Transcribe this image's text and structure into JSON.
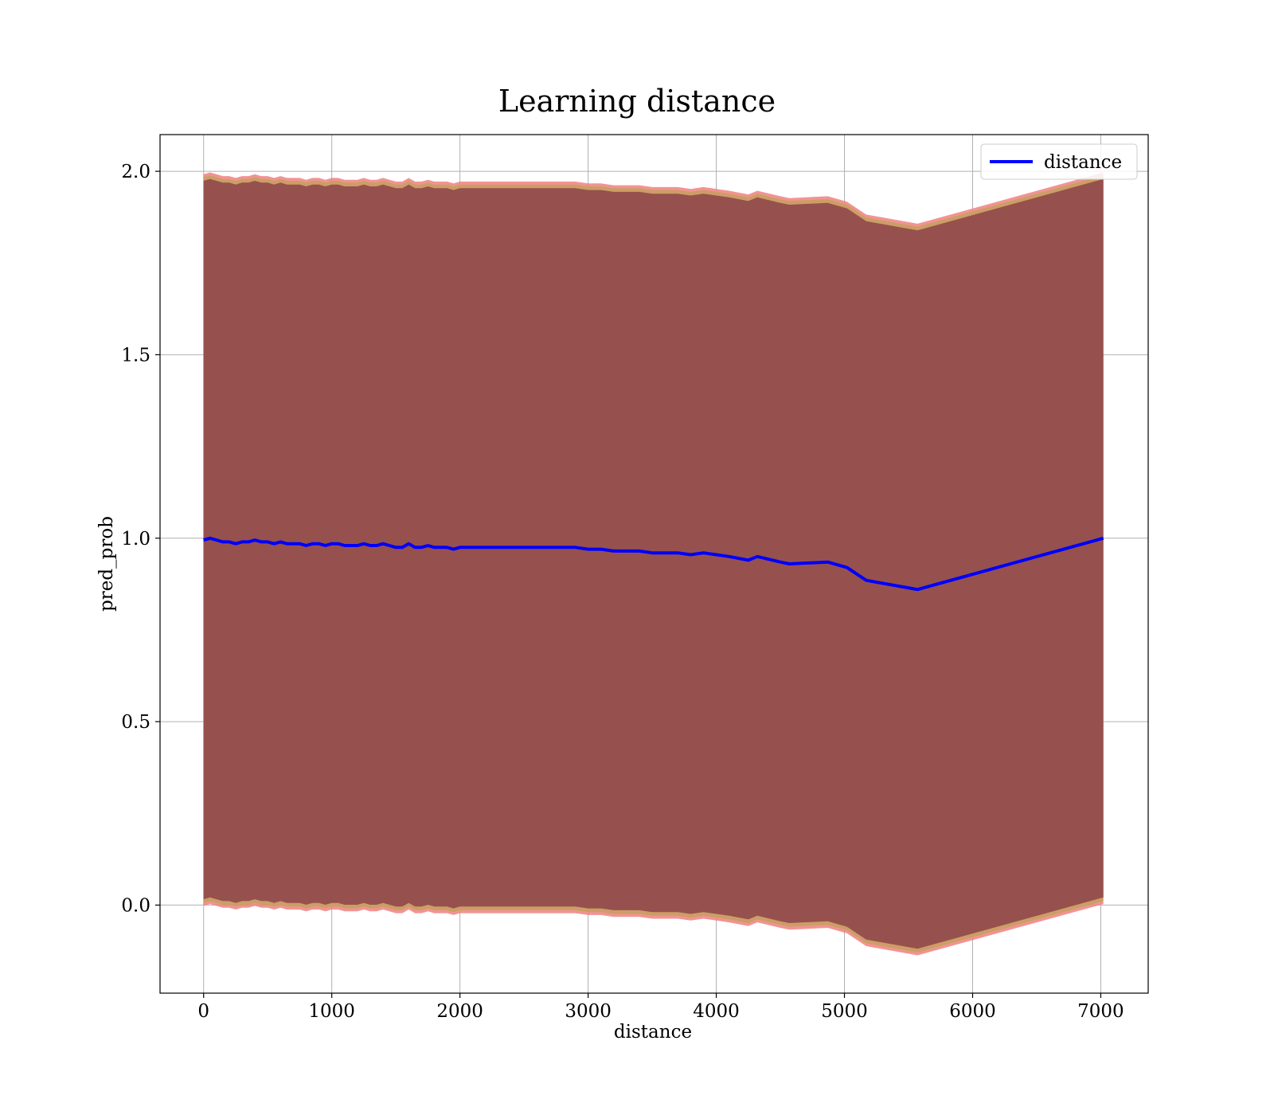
{
  "chart_data": {
    "type": "line",
    "title": "Learning distance",
    "xlabel": "distance",
    "ylabel": "pred_prob",
    "xlim": [
      -340,
      7370
    ],
    "ylim": [
      -0.24,
      2.1
    ],
    "xticks": [
      0,
      1000,
      2000,
      3000,
      4000,
      5000,
      6000,
      7000
    ],
    "xtick_labels": [
      "0",
      "1000",
      "2000",
      "3000",
      "4000",
      "5000",
      "6000",
      "7000"
    ],
    "yticks": [
      0.0,
      0.5,
      1.0,
      1.5,
      2.0
    ],
    "ytick_labels": [
      "0.0",
      "0.5",
      "1.0",
      "1.5",
      "2.0"
    ],
    "grid": true,
    "legend_position": "top-right",
    "colors": {
      "line": "#0000ff",
      "band_outer": "#f08080",
      "band_mid": "#c8a060",
      "band_inner": "#7f3045"
    },
    "series": [
      {
        "name": "distance",
        "x": [
          0,
          50,
          100,
          150,
          200,
          250,
          300,
          350,
          400,
          450,
          500,
          550,
          600,
          650,
          700,
          750,
          800,
          850,
          900,
          950,
          1000,
          1050,
          1100,
          1150,
          1200,
          1250,
          1300,
          1350,
          1400,
          1450,
          1500,
          1550,
          1600,
          1650,
          1700,
          1750,
          1800,
          1850,
          1900,
          1950,
          2000,
          2100,
          2200,
          2300,
          2400,
          2500,
          2600,
          2700,
          2800,
          2900,
          3000,
          3100,
          3200,
          3300,
          3400,
          3500,
          3600,
          3700,
          3800,
          3900,
          4000,
          4100,
          4250,
          4320,
          4500,
          4570,
          4870,
          5020,
          5170,
          5570,
          7020
        ],
        "y": [
          0.995,
          1.0,
          0.995,
          0.99,
          0.99,
          0.985,
          0.99,
          0.99,
          0.995,
          0.99,
          0.99,
          0.985,
          0.99,
          0.985,
          0.985,
          0.985,
          0.98,
          0.985,
          0.985,
          0.98,
          0.985,
          0.985,
          0.98,
          0.98,
          0.98,
          0.985,
          0.98,
          0.98,
          0.985,
          0.98,
          0.975,
          0.975,
          0.985,
          0.975,
          0.975,
          0.98,
          0.975,
          0.975,
          0.975,
          0.97,
          0.975,
          0.975,
          0.975,
          0.975,
          0.975,
          0.975,
          0.975,
          0.975,
          0.975,
          0.975,
          0.97,
          0.97,
          0.965,
          0.965,
          0.965,
          0.96,
          0.96,
          0.96,
          0.955,
          0.96,
          0.955,
          0.95,
          0.94,
          0.95,
          0.935,
          0.93,
          0.935,
          0.92,
          0.885,
          0.86,
          1.0
        ],
        "band_half_width": 0.985
      }
    ]
  }
}
